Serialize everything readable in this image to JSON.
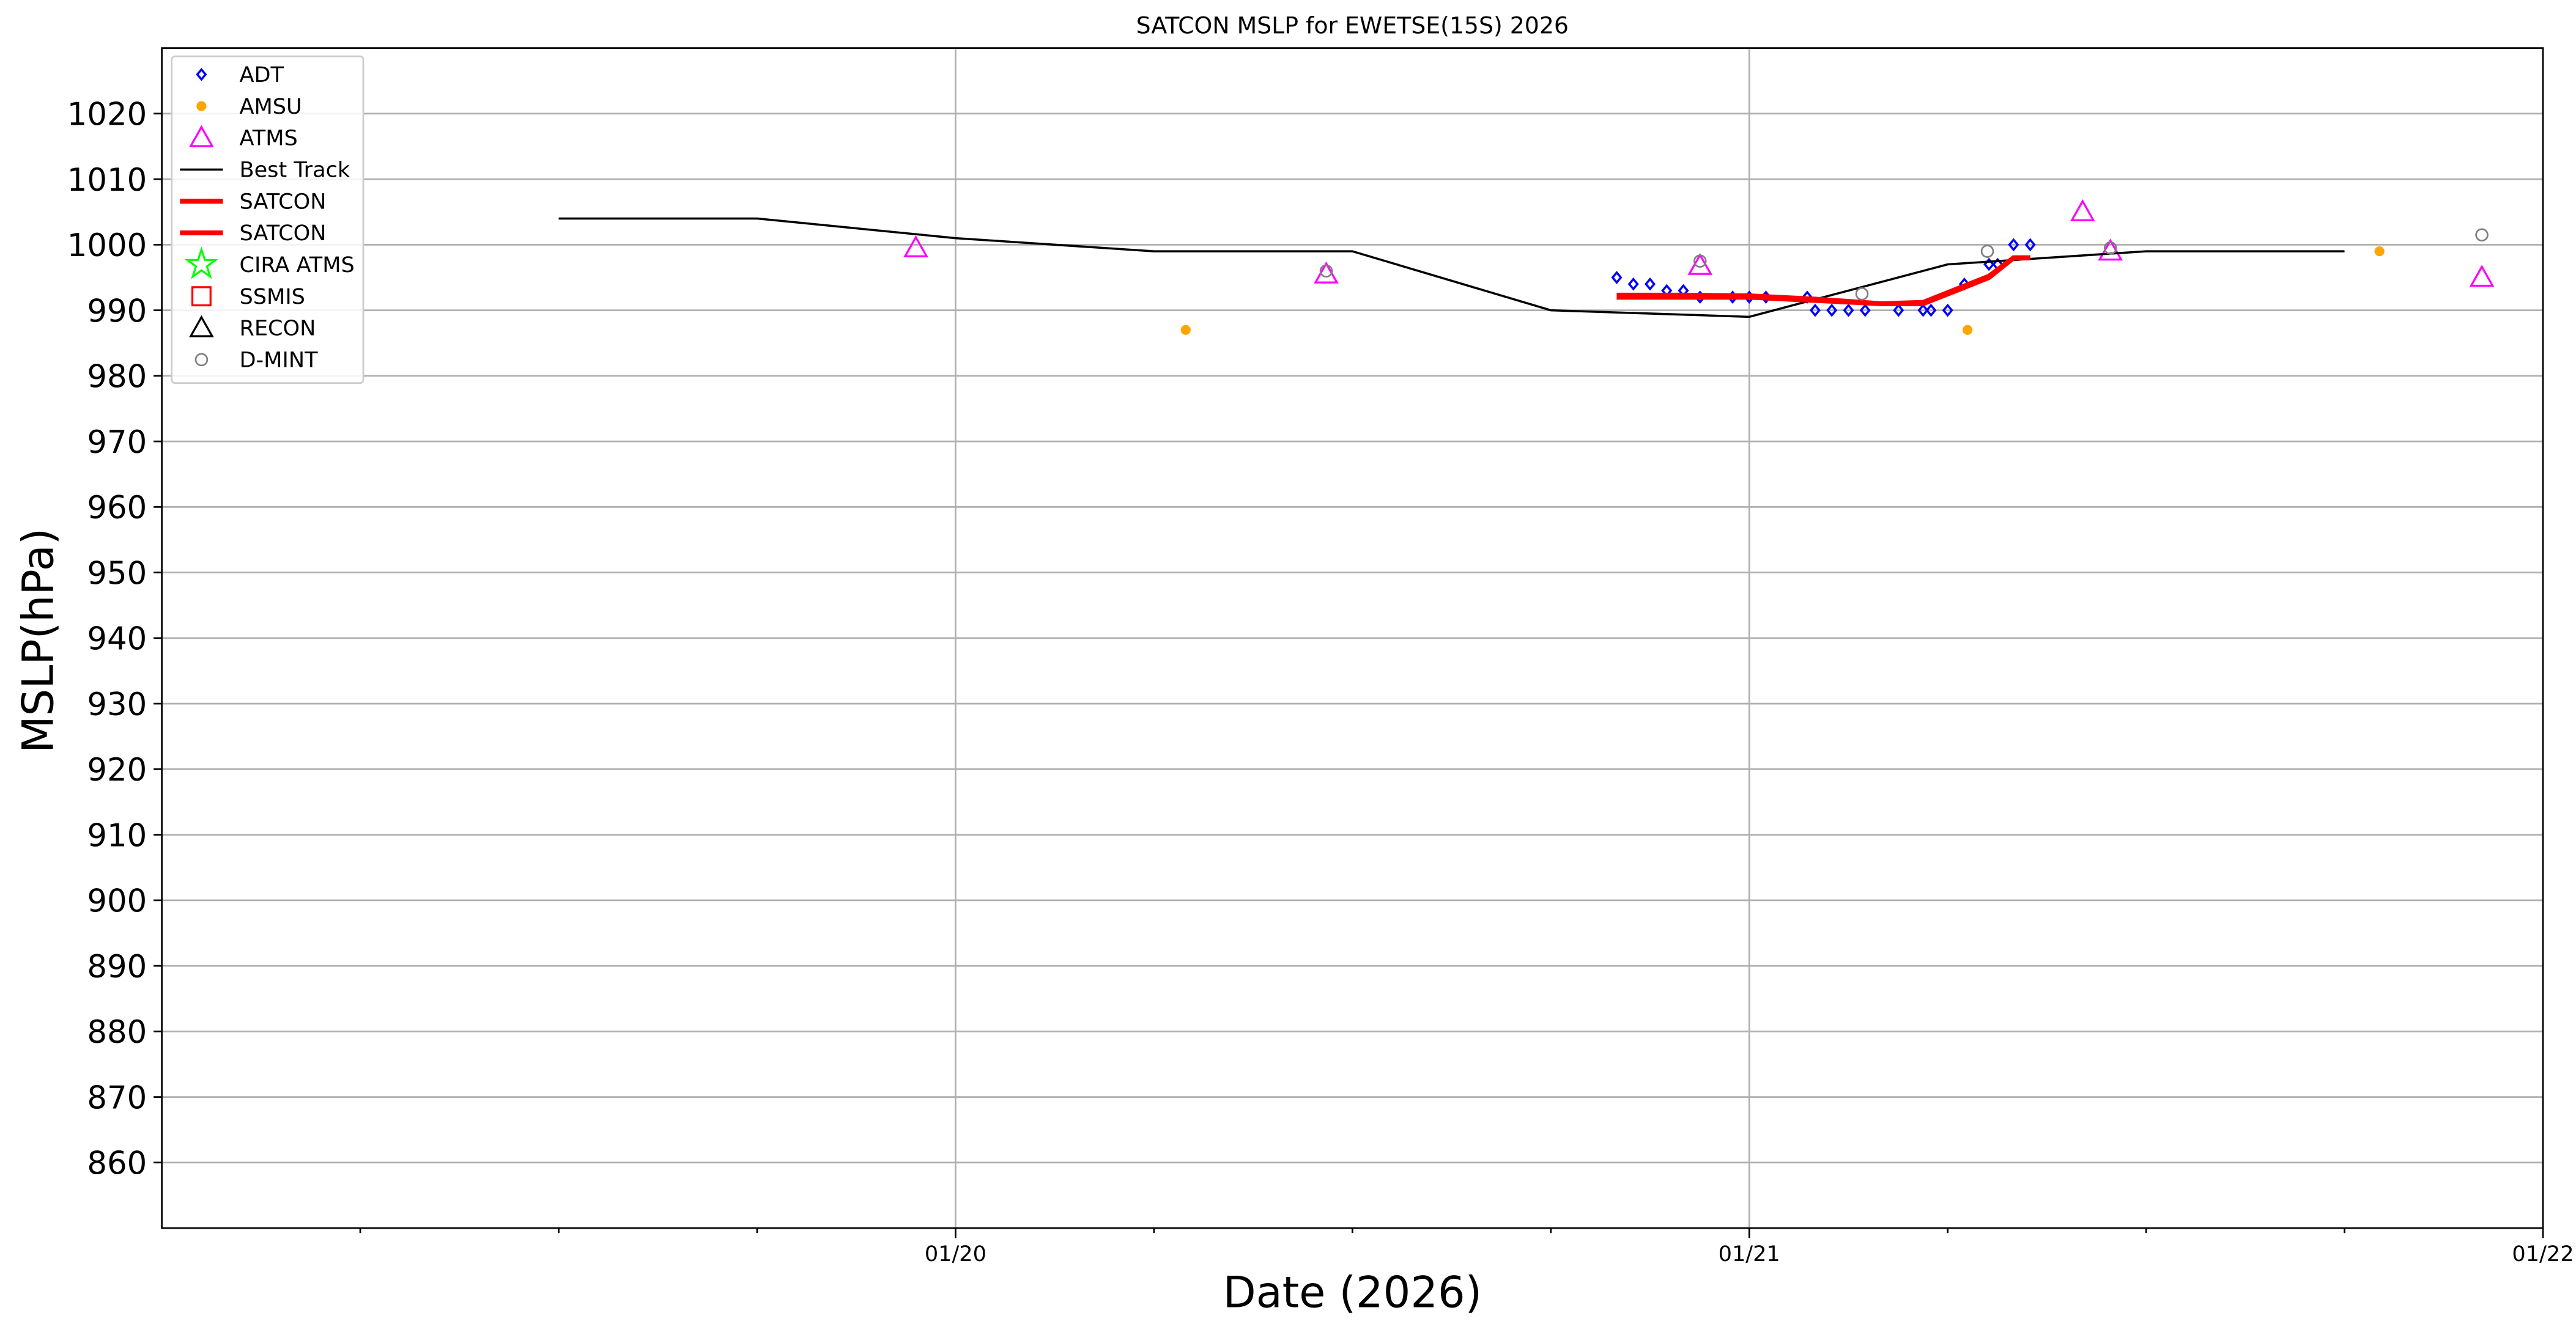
{
  "chart_data": {
    "type": "line",
    "title": "SATCON MSLP for EWETSE(15S) 2026",
    "xlabel": "Date (2026)",
    "ylabel": "MSLP(hPa)",
    "xlim": [
      19,
      22
    ],
    "xticks": [
      {
        "value": 20,
        "label": "01/20"
      },
      {
        "value": 21,
        "label": "01/21"
      },
      {
        "value": 22,
        "label": "01/22"
      }
    ],
    "xminorticks": [
      19.25,
      19.5,
      19.75,
      20.25,
      20.5,
      20.75,
      21.25,
      21.5,
      21.75
    ],
    "ylim": [
      850,
      1030
    ],
    "yticks": [
      860,
      870,
      880,
      890,
      900,
      910,
      920,
      930,
      940,
      950,
      960,
      970,
      980,
      990,
      1000,
      1010,
      1020
    ],
    "grid": true,
    "legend": "upper left",
    "series": [
      {
        "name": "ADT",
        "color": "#0000ff",
        "marker": "diamond",
        "x": [
          20.833,
          20.854,
          20.875,
          20.896,
          20.917,
          20.938,
          20.979,
          21.0,
          21.021,
          21.073,
          21.083,
          21.104,
          21.125,
          21.146,
          21.188,
          21.219,
          21.229,
          21.25,
          21.271,
          21.302,
          21.313,
          21.333,
          21.354
        ],
        "values": [
          995,
          994,
          994,
          993,
          993,
          992,
          992,
          992,
          992,
          992,
          990,
          990,
          990,
          990,
          990,
          990,
          990,
          990,
          994,
          997,
          997,
          1000,
          1000
        ]
      },
      {
        "name": "AMSU",
        "color": "#ffa500",
        "marker": "dot",
        "x": [
          20.29,
          21.275,
          21.794
        ],
        "values": [
          987,
          987,
          999
        ]
      },
      {
        "name": "ATMS",
        "color": "#ff00ff",
        "marker": "triangle",
        "x": [
          19.95,
          20.467,
          20.938,
          21.42,
          21.455,
          21.923
        ],
        "values": [
          999.5,
          995.5,
          996.8,
          1005,
          999,
          995
        ]
      },
      {
        "name": "Best Track",
        "color": "#000000",
        "marker": "line",
        "x": [
          19.5,
          19.75,
          20.0,
          20.25,
          20.5,
          20.75,
          21.0,
          21.25,
          21.5,
          21.75
        ],
        "values": [
          1004,
          1004,
          1001,
          999,
          999,
          990,
          989,
          997,
          999,
          999
        ]
      },
      {
        "name": "SATCON",
        "color": "#ff0000",
        "marker": "thickline",
        "x": [
          20.833,
          20.917,
          21.0,
          21.083,
          21.167,
          21.219,
          21.271,
          21.302,
          21.333,
          21.354
        ],
        "values": [
          992,
          992,
          992,
          991.5,
          991,
          991,
          993.5,
          995,
          998,
          998
        ]
      },
      {
        "name": "SATCON",
        "color": "#ff0000",
        "marker": "thickline",
        "x": [
          20.833,
          20.917,
          21.0,
          21.083,
          21.167,
          21.219,
          21.271,
          21.302,
          21.333,
          21.354
        ],
        "values": [
          992.3,
          992.3,
          992.2,
          991.7,
          991,
          991.2,
          993.7,
          995.2,
          998,
          998
        ]
      },
      {
        "name": "CIRA ATMS",
        "color": "#00ff00",
        "marker": "star",
        "x": [],
        "values": []
      },
      {
        "name": "SSMIS",
        "color": "#ff0000",
        "marker": "square",
        "x": [],
        "values": []
      },
      {
        "name": "RECON",
        "color": "#000000",
        "marker": "triangle",
        "x": [],
        "values": []
      },
      {
        "name": "D-MINT",
        "color": "#808080",
        "marker": "circle",
        "x": [
          20.467,
          20.938,
          21.142,
          21.3,
          21.455,
          21.923
        ],
        "values": [
          996,
          997.5,
          992.5,
          999,
          999.5,
          1001.5
        ]
      }
    ]
  }
}
